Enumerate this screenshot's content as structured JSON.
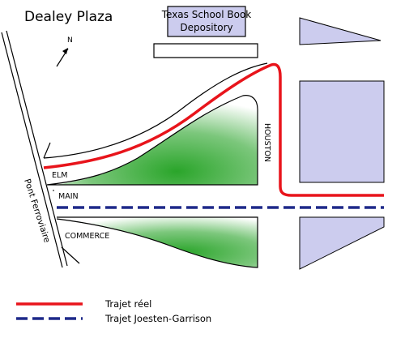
{
  "map": {
    "title": "Dealey Plaza",
    "north_label": "N",
    "building": {
      "line1": "Texas School Book",
      "line2": "Depository"
    },
    "streets": {
      "elm": "ELM",
      "main": "MAIN",
      "commerce": "COMMERCE",
      "houston": "HOUSTON",
      "railway": "Pont Ferroviaire"
    },
    "legend": [
      {
        "label": "Trajet réel",
        "color": "#e8141b",
        "style": "solid"
      },
      {
        "label": "Trajet Joesten-Garrison",
        "color": "#1f2a8a",
        "style": "dashed"
      }
    ],
    "colors": {
      "building_fill": "#ccccee",
      "grass": "#2aa52a",
      "route_real": "#e8141b",
      "route_alt": "#1f2a8a"
    }
  }
}
